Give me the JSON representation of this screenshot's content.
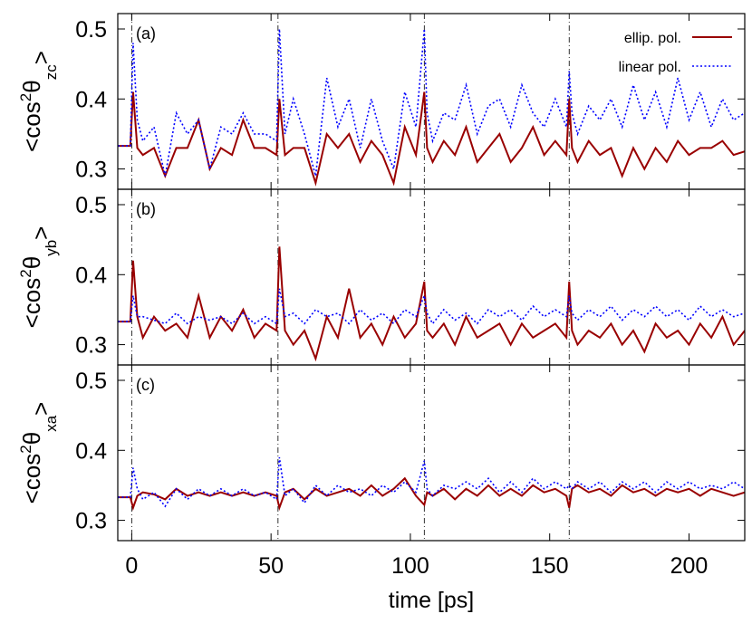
{
  "chart_data": [
    {
      "type": "line",
      "panel_label": "(a)",
      "ylabel_parts": [
        "<cos",
        "2",
        "θ",
        "zc",
        ">"
      ],
      "xlim": [
        -5,
        220
      ],
      "ylim": [
        0.271,
        0.522
      ],
      "yticks": [
        0.3,
        0.4,
        0.5
      ],
      "vlines": [
        0,
        52.5,
        105,
        157
      ],
      "legend": "upper right",
      "x": [
        -5,
        -0.5,
        0.5,
        2,
        4,
        8,
        12,
        16,
        20,
        24,
        28,
        32,
        36,
        40,
        44,
        48,
        52,
        53,
        55,
        58,
        62,
        66,
        70,
        74,
        78,
        82,
        86,
        90,
        94,
        98,
        102,
        105,
        106,
        108,
        112,
        116,
        120,
        124,
        128,
        132,
        136,
        140,
        144,
        148,
        152,
        156,
        157,
        158,
        160,
        164,
        168,
        172,
        176,
        180,
        184,
        188,
        192,
        196,
        200,
        204,
        208,
        212,
        216,
        220
      ],
      "series": [
        {
          "name": "ellip. pol.",
          "color": "#990000",
          "dash": "solid",
          "values": [
            0.333,
            0.333,
            0.41,
            0.33,
            0.32,
            0.33,
            0.29,
            0.33,
            0.33,
            0.37,
            0.3,
            0.33,
            0.32,
            0.37,
            0.33,
            0.33,
            0.32,
            0.4,
            0.32,
            0.33,
            0.33,
            0.28,
            0.35,
            0.33,
            0.35,
            0.31,
            0.34,
            0.32,
            0.28,
            0.36,
            0.32,
            0.41,
            0.33,
            0.31,
            0.34,
            0.32,
            0.36,
            0.31,
            0.33,
            0.35,
            0.31,
            0.33,
            0.36,
            0.32,
            0.34,
            0.32,
            0.4,
            0.33,
            0.31,
            0.34,
            0.32,
            0.33,
            0.29,
            0.33,
            0.3,
            0.33,
            0.31,
            0.34,
            0.32,
            0.33,
            0.33,
            0.34,
            0.32,
            0.325
          ]
        },
        {
          "name": "linear pol.",
          "color": "#0000ff",
          "dash": "dotted",
          "values": [
            0.333,
            0.333,
            0.48,
            0.37,
            0.34,
            0.36,
            0.29,
            0.38,
            0.35,
            0.37,
            0.3,
            0.36,
            0.35,
            0.38,
            0.35,
            0.35,
            0.34,
            0.5,
            0.35,
            0.4,
            0.35,
            0.29,
            0.43,
            0.36,
            0.4,
            0.33,
            0.4,
            0.34,
            0.3,
            0.41,
            0.36,
            0.5,
            0.38,
            0.34,
            0.38,
            0.37,
            0.42,
            0.35,
            0.39,
            0.4,
            0.36,
            0.42,
            0.38,
            0.36,
            0.4,
            0.36,
            0.44,
            0.38,
            0.35,
            0.39,
            0.37,
            0.4,
            0.36,
            0.42,
            0.37,
            0.41,
            0.36,
            0.43,
            0.37,
            0.41,
            0.36,
            0.4,
            0.37,
            0.38
          ]
        }
      ]
    },
    {
      "type": "line",
      "panel_label": "(b)",
      "ylabel_parts": [
        "<cos",
        "2",
        "θ",
        "yb",
        ">"
      ],
      "xlim": [
        -5,
        220
      ],
      "ylim": [
        0.271,
        0.522
      ],
      "yticks": [
        0.3,
        0.4,
        0.5
      ],
      "vlines": [
        0,
        52.5,
        105,
        157
      ],
      "x": [
        -5,
        -0.5,
        0.5,
        2,
        4,
        8,
        12,
        16,
        20,
        24,
        28,
        32,
        36,
        40,
        44,
        48,
        52,
        53,
        55,
        58,
        62,
        66,
        70,
        74,
        78,
        82,
        86,
        90,
        94,
        98,
        102,
        105,
        106,
        108,
        112,
        116,
        120,
        124,
        128,
        132,
        136,
        140,
        144,
        148,
        152,
        156,
        157,
        158,
        160,
        164,
        168,
        172,
        176,
        180,
        184,
        188,
        192,
        196,
        200,
        204,
        208,
        212,
        216,
        220
      ],
      "series": [
        {
          "color": "#990000",
          "dash": "solid",
          "values": [
            0.333,
            0.333,
            0.42,
            0.34,
            0.31,
            0.34,
            0.32,
            0.33,
            0.31,
            0.37,
            0.31,
            0.34,
            0.32,
            0.35,
            0.31,
            0.33,
            0.32,
            0.44,
            0.32,
            0.3,
            0.32,
            0.28,
            0.34,
            0.31,
            0.38,
            0.31,
            0.33,
            0.3,
            0.34,
            0.31,
            0.33,
            0.39,
            0.32,
            0.31,
            0.33,
            0.3,
            0.34,
            0.31,
            0.32,
            0.33,
            0.3,
            0.33,
            0.31,
            0.32,
            0.33,
            0.31,
            0.39,
            0.32,
            0.3,
            0.32,
            0.31,
            0.33,
            0.3,
            0.32,
            0.29,
            0.33,
            0.31,
            0.32,
            0.3,
            0.33,
            0.31,
            0.34,
            0.3,
            0.32
          ]
        },
        {
          "color": "#0000ff",
          "dash": "dotted",
          "values": [
            0.333,
            0.333,
            0.37,
            0.34,
            0.34,
            0.335,
            0.33,
            0.345,
            0.33,
            0.34,
            0.335,
            0.34,
            0.33,
            0.345,
            0.33,
            0.34,
            0.33,
            0.38,
            0.34,
            0.345,
            0.33,
            0.35,
            0.34,
            0.345,
            0.33,
            0.35,
            0.335,
            0.345,
            0.33,
            0.35,
            0.34,
            0.37,
            0.345,
            0.33,
            0.35,
            0.335,
            0.345,
            0.33,
            0.35,
            0.34,
            0.35,
            0.335,
            0.355,
            0.34,
            0.35,
            0.34,
            0.37,
            0.345,
            0.335,
            0.35,
            0.34,
            0.355,
            0.335,
            0.35,
            0.34,
            0.355,
            0.34,
            0.35,
            0.335,
            0.355,
            0.34,
            0.35,
            0.34,
            0.345
          ]
        }
      ]
    },
    {
      "type": "line",
      "panel_label": "(c)",
      "ylabel_parts": [
        "<cos",
        "2",
        "θ",
        "xa",
        ">"
      ],
      "xlim": [
        -5,
        220
      ],
      "ylim": [
        0.271,
        0.522
      ],
      "yticks": [
        0.3,
        0.4,
        0.5
      ],
      "vlines": [
        0,
        52.5,
        105,
        157
      ],
      "xticks": [
        0,
        50,
        100,
        150,
        200
      ],
      "xlabel": "time [ps]",
      "x": [
        -5,
        -0.5,
        0.5,
        2,
        4,
        8,
        12,
        16,
        20,
        24,
        28,
        32,
        36,
        40,
        44,
        48,
        52,
        53,
        55,
        58,
        62,
        66,
        70,
        74,
        78,
        82,
        86,
        90,
        94,
        98,
        102,
        105,
        106,
        108,
        112,
        116,
        120,
        124,
        128,
        132,
        136,
        140,
        144,
        148,
        152,
        156,
        157,
        158,
        160,
        164,
        168,
        172,
        176,
        180,
        184,
        188,
        192,
        196,
        200,
        204,
        208,
        212,
        216,
        220
      ],
      "series": [
        {
          "color": "#990000",
          "dash": "solid",
          "values": [
            0.333,
            0.333,
            0.318,
            0.335,
            0.34,
            0.337,
            0.33,
            0.345,
            0.335,
            0.34,
            0.335,
            0.34,
            0.335,
            0.34,
            0.335,
            0.34,
            0.335,
            0.318,
            0.34,
            0.345,
            0.33,
            0.345,
            0.335,
            0.34,
            0.345,
            0.335,
            0.35,
            0.335,
            0.345,
            0.36,
            0.335,
            0.322,
            0.34,
            0.335,
            0.345,
            0.33,
            0.345,
            0.335,
            0.35,
            0.335,
            0.345,
            0.335,
            0.35,
            0.34,
            0.345,
            0.335,
            0.318,
            0.345,
            0.35,
            0.34,
            0.345,
            0.335,
            0.35,
            0.34,
            0.345,
            0.335,
            0.345,
            0.34,
            0.345,
            0.335,
            0.345,
            0.34,
            0.335,
            0.34
          ]
        },
        {
          "color": "#0000ff",
          "dash": "dotted",
          "values": [
            0.333,
            0.333,
            0.375,
            0.345,
            0.33,
            0.34,
            0.32,
            0.345,
            0.33,
            0.345,
            0.335,
            0.345,
            0.335,
            0.345,
            0.335,
            0.34,
            0.33,
            0.39,
            0.335,
            0.345,
            0.325,
            0.35,
            0.335,
            0.35,
            0.34,
            0.345,
            0.335,
            0.35,
            0.34,
            0.355,
            0.34,
            0.385,
            0.345,
            0.335,
            0.35,
            0.345,
            0.355,
            0.345,
            0.36,
            0.34,
            0.355,
            0.34,
            0.36,
            0.345,
            0.355,
            0.345,
            0.35,
            0.345,
            0.355,
            0.345,
            0.355,
            0.34,
            0.355,
            0.345,
            0.355,
            0.34,
            0.355,
            0.345,
            0.355,
            0.345,
            0.35,
            0.345,
            0.355,
            0.345
          ]
        }
      ]
    }
  ]
}
